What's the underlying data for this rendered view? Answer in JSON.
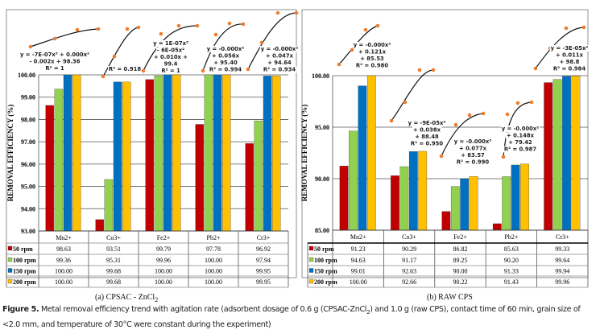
{
  "series_colors": {
    "50 rpm": "#c00000",
    "100 rpm": "#92d050",
    "150 rpm": "#0070c0",
    "200 rpm": "#ffc000"
  },
  "trend_point_color": "#ed7d31",
  "chart_data": [
    {
      "type": "bar",
      "subtitle": "(a) CPSAC - ZnCl",
      "subtitle_sub": "2",
      "ylabel": "REMOVAL EFFICIENCY (%)",
      "ylim": [
        93,
        100
      ],
      "yticks": [
        "100.00",
        "99.00",
        "98.00",
        "97.00",
        "96.00",
        "95.00",
        "94.00",
        "93.00"
      ],
      "grid": true,
      "legend": "data-table",
      "categories": [
        "Mn2+",
        "Co3+",
        "Fe2+",
        "Pb2+",
        "Cr3+"
      ],
      "series": [
        {
          "name": "50 rpm",
          "values": [
            98.63,
            93.51,
            99.79,
            97.78,
            96.92
          ],
          "labels": [
            "98.63",
            "93.51",
            "99.79",
            "97.78",
            "96.92"
          ]
        },
        {
          "name": "100 rpm",
          "values": [
            99.36,
            95.31,
            99.96,
            100.0,
            97.94
          ],
          "labels": [
            "99.36",
            "95.31",
            "99.96",
            "100.00",
            "97.94"
          ]
        },
        {
          "name": "150 rpm",
          "values": [
            100.0,
            99.68,
            100.0,
            100.0,
            99.95
          ],
          "labels": [
            "100.00",
            "99.68",
            "100.00",
            "100.00",
            "99.95"
          ]
        },
        {
          "name": "200 rpm",
          "values": [
            100.0,
            99.68,
            100.0,
            100.0,
            99.95
          ],
          "labels": [
            "100.00",
            "99.68",
            "100.00",
            "100.00",
            "99.95"
          ]
        }
      ],
      "trendlines": [
        {
          "lines": [
            "y = -7E-07x³ + 0.000x²",
            "- 0.002x + 98.36",
            "R² = 1"
          ]
        },
        {
          "lines": [
            "R² = 0.918"
          ]
        },
        {
          "lines": [
            "y = 1E-07x³",
            "- 6E-05x²",
            "+ 0.010x +",
            "99.4",
            "R² = 1"
          ]
        },
        {
          "lines": [
            "y = -0.000x²",
            "+ 0.056x",
            "+ 95.40",
            "R² = 0.994"
          ]
        },
        {
          "lines": [
            "y = -0.000x²",
            "+ 0.047x",
            "+ 94.64",
            "R² = 0.934"
          ]
        }
      ]
    },
    {
      "type": "bar",
      "subtitle": "(b) RAW CPS",
      "ylabel": "REMOVAL EFFICIENCY (%)",
      "ylim": [
        85,
        100
      ],
      "yticks": [
        "100.00",
        "95.00",
        "90.00",
        "85.00"
      ],
      "grid": true,
      "legend": "data-table",
      "categories": [
        "Mn2+",
        "Co3+",
        "Fe2+",
        "Pb2+",
        "Cr3+"
      ],
      "series": [
        {
          "name": "50 rpm",
          "values": [
            91.23,
            90.29,
            86.82,
            85.63,
            99.33
          ],
          "labels": [
            "91.23",
            "90.29",
            "86.82",
            "85.63",
            "99.33"
          ]
        },
        {
          "name": "100 rpm",
          "values": [
            94.63,
            91.17,
            89.25,
            90.2,
            99.64
          ],
          "labels": [
            "94.63",
            "91.17",
            "89.25",
            "90.20",
            "99.64"
          ]
        },
        {
          "name": "150 rpm",
          "values": [
            99.01,
            92.63,
            90.0,
            91.33,
            99.94
          ],
          "labels": [
            "99.01",
            "92.63",
            "90.00",
            "91.33",
            "99.94"
          ]
        },
        {
          "name": "200 rpm",
          "values": [
            100.0,
            92.66,
            90.22,
            91.43,
            99.96
          ],
          "labels": [
            "100.00",
            "92.66",
            "90.22",
            "91.43",
            "99.96"
          ]
        }
      ],
      "trendlines": [
        {
          "lines": [
            "y = -0.000x²",
            "+ 0.121x",
            "+ 85.53",
            "R² = 0.980"
          ]
        },
        {
          "lines": [
            "y = -9E-05x²",
            "+ 0.038x",
            "+ 88.48",
            "R² = 0.950"
          ]
        },
        {
          "lines": [
            "y = -0.000x²",
            "+ 0.077x",
            "+ 83.57",
            "R² = 0.990"
          ]
        },
        {
          "lines": [
            "y = -0.000x²",
            "+ 0.148x",
            "+ 79.42",
            "R² = 0.987"
          ]
        },
        {
          "lines": [
            "y = -3E-05x²",
            "+ 0.011x",
            "+ 98.8",
            "R² = 0.984"
          ]
        }
      ]
    }
  ],
  "caption": {
    "label": "Figure 5.",
    "text_a": " Metal removal efficiency trend with agitation rate (adsorbent dosage of 0.6 g (CPSAC-ZnCl",
    "text_sub": "2",
    "text_b": ") and 1.0 g (raw CPS), contact time of 60 min, grain size of <2.0 mm, and temperature of 30°C were constant during the experiment)"
  }
}
